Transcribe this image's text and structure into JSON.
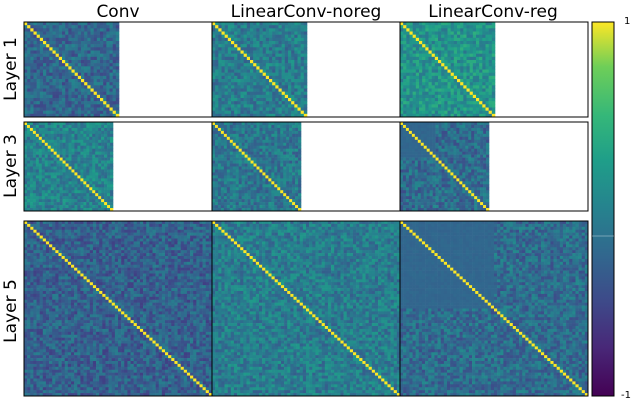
{
  "chart_data": {
    "type": "heatmap",
    "description_columns": [
      "Conv",
      "LinearConv-noreg",
      "LinearConv-reg"
    ],
    "rows": [
      "Layer 1",
      "Layer 3",
      "Layer 5"
    ],
    "panels": [
      {
        "row": "Layer 1",
        "col": "Conv",
        "matrix_extent": "square, left half of panel",
        "mean_level": -0.25,
        "diagonal": 1
      },
      {
        "row": "Layer 1",
        "col": "LinearConv-noreg",
        "matrix_extent": "square, left half of panel",
        "mean_level": -0.05,
        "diagonal": 1
      },
      {
        "row": "Layer 1",
        "col": "LinearConv-reg",
        "matrix_extent": "square, left half of panel",
        "mean_level": 0.15,
        "diagonal": 1
      },
      {
        "row": "Layer 3",
        "col": "Conv",
        "matrix_extent": "square, left half of panel",
        "mean_level": 0.0,
        "diagonal": 1
      },
      {
        "row": "Layer 3",
        "col": "LinearConv-noreg",
        "matrix_extent": "square, left half of panel",
        "mean_level": -0.1,
        "diagonal": 1
      },
      {
        "row": "Layer 3",
        "col": "LinearConv-reg",
        "matrix_extent": "square, left half of panel",
        "mean_level": -0.2,
        "diagonal": 1
      },
      {
        "row": "Layer 5",
        "col": "Conv",
        "matrix_extent": "full panel",
        "mean_level": -0.3,
        "diagonal": 1
      },
      {
        "row": "Layer 5",
        "col": "LinearConv-noreg",
        "matrix_extent": "full panel",
        "mean_level": -0.05,
        "diagonal": 1
      },
      {
        "row": "Layer 5",
        "col": "LinearConv-reg",
        "matrix_extent": "full panel",
        "mean_level": -0.2,
        "diagonal": 1
      }
    ],
    "colorbar": {
      "colormap": "viridis",
      "min": -1,
      "max": 1,
      "tick_labels": [
        "1",
        "-1"
      ]
    },
    "grid": false
  },
  "titles": {
    "col1": "Conv",
    "col2": "LinearConv-noreg",
    "col3": "LinearConv-reg"
  },
  "row_labels": {
    "row1": "Layer 1",
    "row3": "Layer 3",
    "row5": "Layer 5"
  },
  "colorbar_ticks": {
    "top": "1",
    "bottom": "-1"
  }
}
